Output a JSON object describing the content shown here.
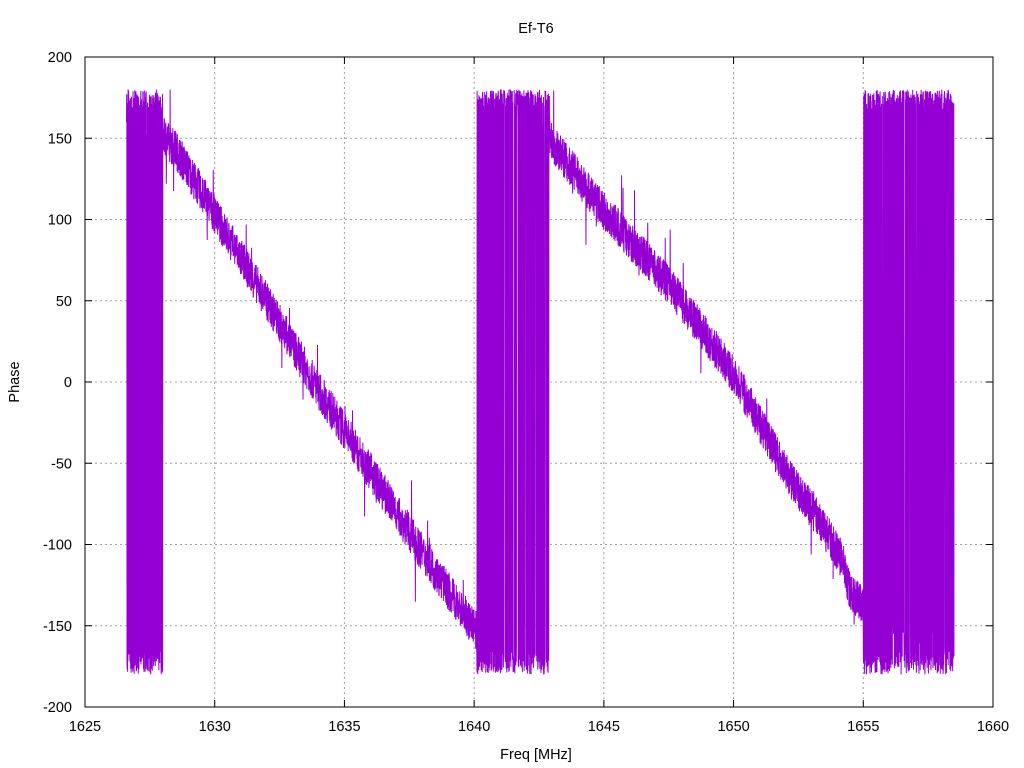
{
  "chart_data": {
    "type": "line",
    "title": "Ef-T6",
    "xlabel": "Freq [MHz]",
    "ylabel": "Phase",
    "xlim": [
      1625,
      1660
    ],
    "ylim": [
      -200,
      200
    ],
    "xticks": [
      1625,
      1630,
      1635,
      1640,
      1645,
      1650,
      1655,
      1660
    ],
    "yticks": [
      -200,
      -150,
      -100,
      -50,
      0,
      50,
      100,
      150,
      200
    ],
    "grid": true,
    "legend": "none",
    "series": [
      {
        "color": "#9400d3",
        "freq_start": 1626.6,
        "freq_end": 1658.5,
        "phase_trend": [
          {
            "x": 1626.6,
            "y": 172
          },
          {
            "x": 1627.5,
            "y": 160
          },
          {
            "x": 1628.5,
            "y": 143
          },
          {
            "x": 1630.0,
            "y": 103
          },
          {
            "x": 1632.0,
            "y": 50
          },
          {
            "x": 1634.0,
            "y": -5
          },
          {
            "x": 1636.0,
            "y": -55
          },
          {
            "x": 1638.0,
            "y": -105
          },
          {
            "x": 1639.5,
            "y": -140
          },
          {
            "x": 1640.4,
            "y": -160
          },
          {
            "x": 1640.9,
            "y": -175
          },
          {
            "x": 1641.0,
            "y": 178
          },
          {
            "x": 1642.5,
            "y": 158
          },
          {
            "x": 1645.0,
            "y": 105
          },
          {
            "x": 1647.5,
            "y": 60
          },
          {
            "x": 1650.0,
            "y": 5
          },
          {
            "x": 1652.0,
            "y": -55
          },
          {
            "x": 1653.5,
            "y": -90
          },
          {
            "x": 1654.2,
            "y": -110
          },
          {
            "x": 1654.5,
            "y": -130
          },
          {
            "x": 1656.0,
            "y": -148
          },
          {
            "x": 1658.5,
            "y": -165
          }
        ],
        "wrap_regions": [
          {
            "x0": 1626.6,
            "x1": 1628.0
          },
          {
            "x0": 1640.1,
            "x1": 1642.9
          },
          {
            "x0": 1655.0,
            "x1": 1658.5
          }
        ],
        "noise_amplitude": 12
      }
    ]
  }
}
